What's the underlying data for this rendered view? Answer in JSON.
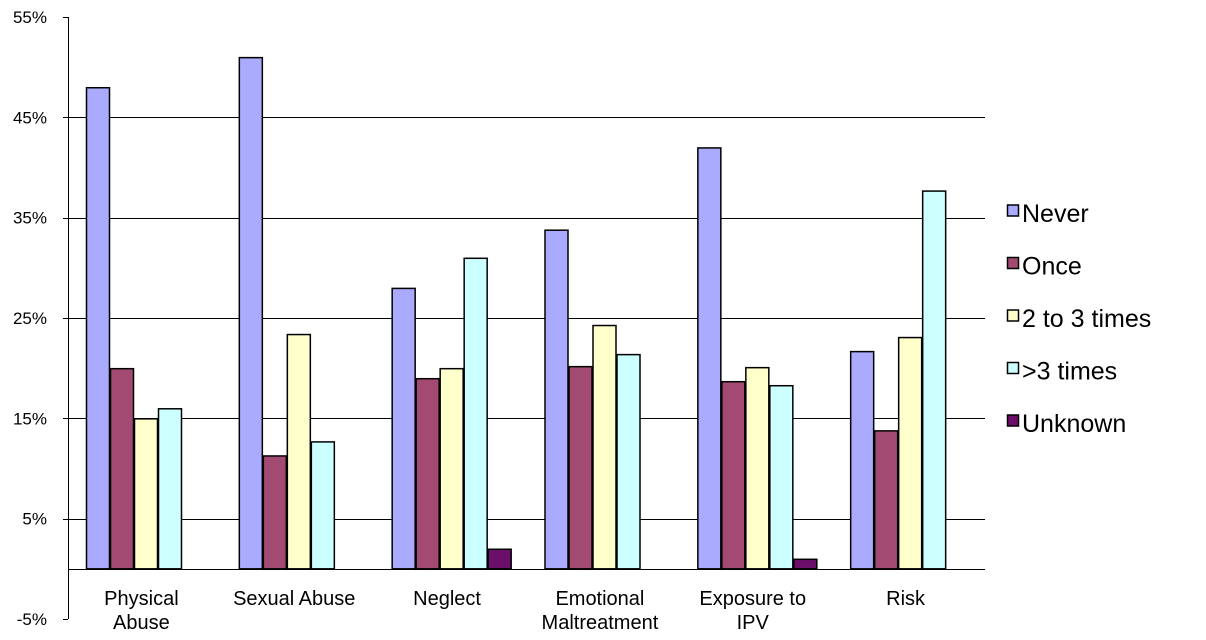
{
  "chart_data": {
    "type": "bar",
    "title": "",
    "xlabel": "",
    "ylabel": "",
    "categories": [
      [
        "Physical",
        "Abuse"
      ],
      [
        "Sexual Abuse"
      ],
      [
        "Neglect"
      ],
      [
        "Emotional",
        "Maltreatment"
      ],
      [
        "Exposure to",
        "IPV"
      ],
      [
        "Risk"
      ]
    ],
    "ylim": [
      -5,
      55
    ],
    "yticks": [
      55,
      45,
      35,
      25,
      15,
      5,
      -5
    ],
    "ytick_labels": [
      "55%",
      "45%",
      "35%",
      "25%",
      "15%",
      "5%",
      "-5%"
    ],
    "grid": true,
    "legend_position": "right",
    "series": [
      {
        "name": "Never",
        "color": "#aaaaff",
        "values": [
          48,
          51,
          28,
          33.8,
          42,
          21.7
        ]
      },
      {
        "name": "Once",
        "color": "#a34a73",
        "values": [
          20,
          11.3,
          19,
          20.2,
          18.7,
          13.8
        ]
      },
      {
        "name": "2 to 3 times",
        "color": "#ffffcc",
        "values": [
          15,
          23.4,
          20,
          24.3,
          20.1,
          23.1
        ]
      },
      {
        "name": ">3 times",
        "color": "#ccffff",
        "values": [
          16,
          12.7,
          31,
          21.4,
          18.3,
          37.7
        ]
      },
      {
        "name": "Unknown",
        "color": "#6b0f6b",
        "values": [
          0,
          0,
          2,
          0,
          1,
          0
        ]
      }
    ]
  }
}
